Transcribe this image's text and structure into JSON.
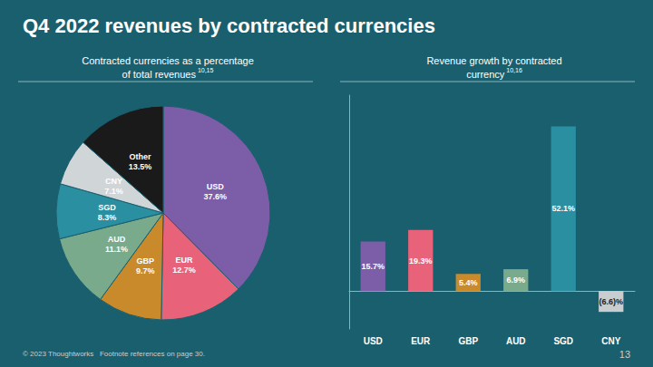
{
  "title": "Q4 2022 revenues by contracted currencies",
  "annotations": [
    "© 2023 Thoughtworks   Footnote references on page 30.",
    "13"
  ],
  "chart_data": [
    {
      "type": "pie",
      "title": "Contracted currencies as a percentage\nof total revenues",
      "annotations": [
        "10,15"
      ],
      "categories": [
        "USD",
        "EUR",
        "GBP",
        "AUD",
        "SGD",
        "CNY",
        "Other"
      ],
      "values": [
        37.6,
        12.7,
        9.7,
        11.1,
        8.3,
        7.1,
        13.5
      ],
      "value_labels": [
        "37.6%",
        "12.7%",
        "9.7%",
        "11.1%",
        "8.3%",
        "7.1%",
        "13.5%"
      ],
      "colors": [
        "#7b5ea7",
        "#e8637a",
        "#c98a2b",
        "#7aaa8c",
        "#2a8fa0",
        "#d0d5d8",
        "#1a1a1a"
      ],
      "data_labels": true,
      "legend": false
    },
    {
      "type": "bar",
      "title": "Revenue growth by contracted\ncurrency",
      "annotations": [
        "10,16"
      ],
      "categories": [
        "USD",
        "EUR",
        "GBP",
        "AUD",
        "SGD",
        "CNY"
      ],
      "values": [
        15.7,
        19.3,
        5.4,
        6.9,
        52.1,
        -6.6
      ],
      "value_labels": [
        "15.7%",
        "19.3%",
        "5.4%",
        "6.9%",
        "52.1%",
        "(6.6)%"
      ],
      "colors": [
        "#7b5ea7",
        "#e8637a",
        "#c98a2b",
        "#7aaa8c",
        "#2a8fa0",
        "#c8cdd0"
      ],
      "ylim": [
        -12,
        62
      ],
      "yticks": [],
      "tick_labels": "x",
      "grid": false,
      "data_labels": true,
      "legend": false
    }
  ]
}
